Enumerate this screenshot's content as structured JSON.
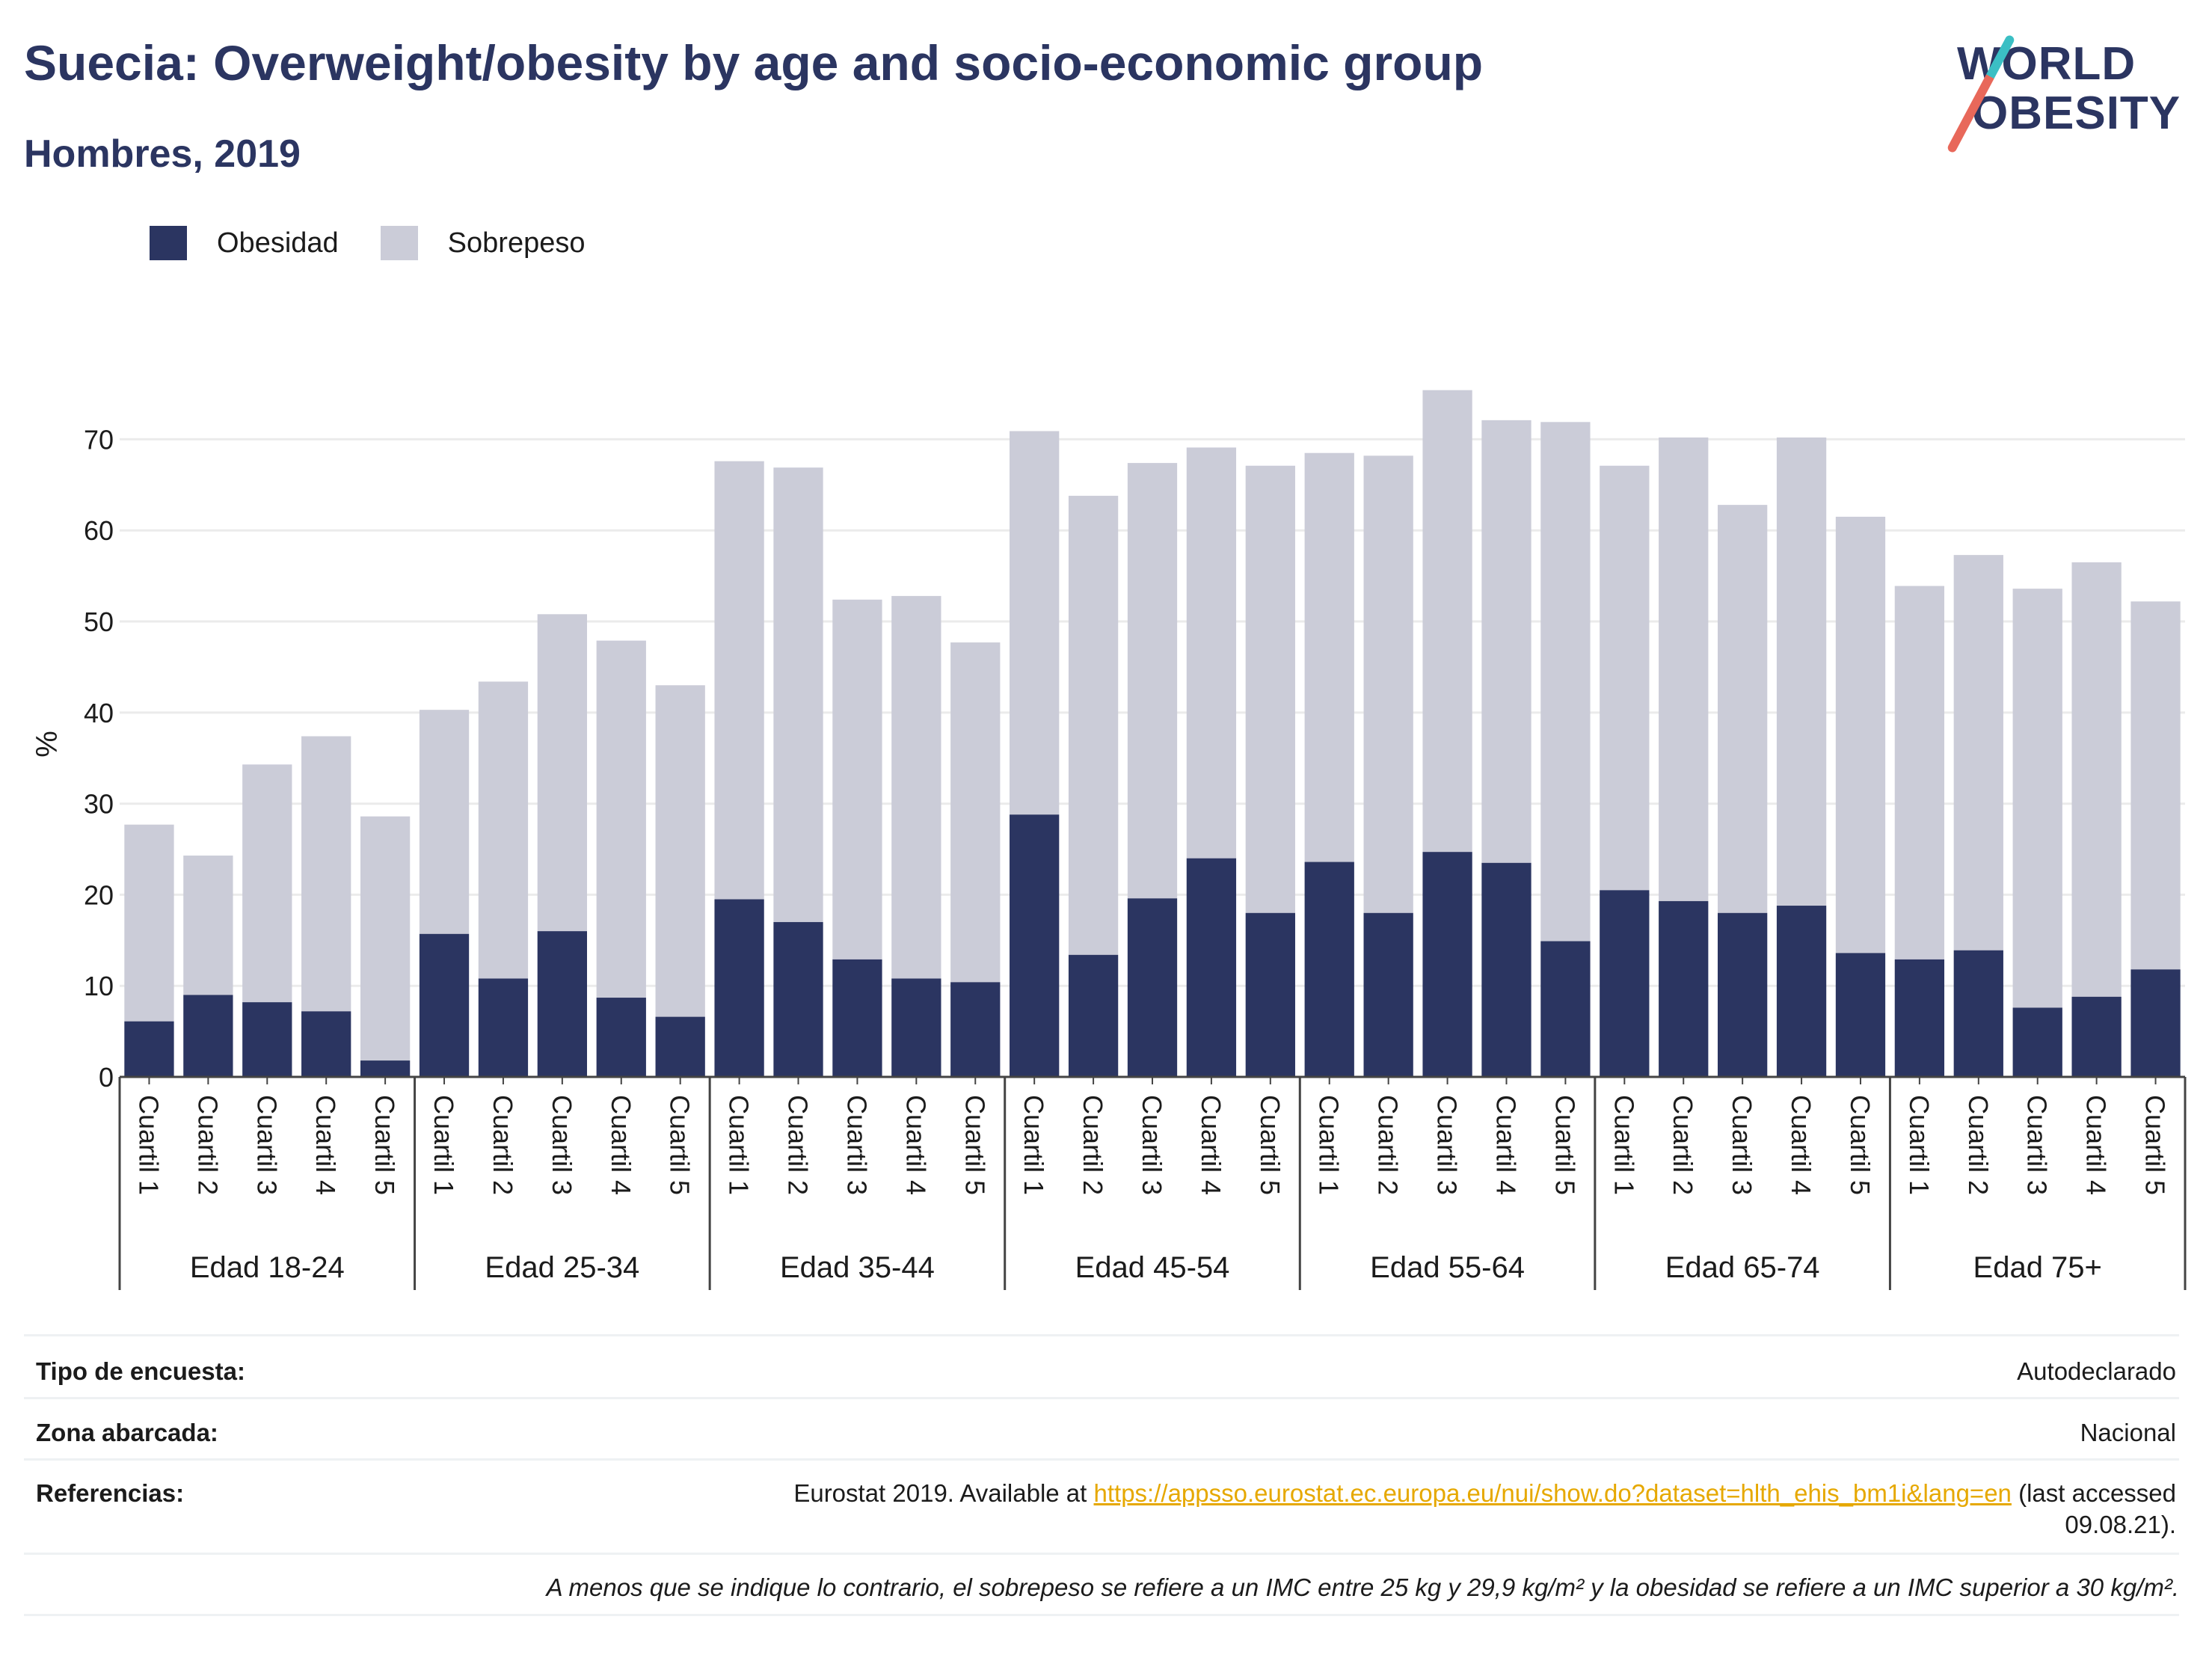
{
  "header": {
    "title": "Suecia: Overweight/obesity by age and socio-economic group",
    "subtitle": "Hombres, 2019"
  },
  "logo": {
    "line1": "WORLD",
    "line2": "OBESITY",
    "accent_top": "#3bbfc4",
    "accent_bottom": "#e8685a"
  },
  "colors": {
    "obesity": "#2b3561",
    "overweight": "#cbccd8",
    "axis": "#444444",
    "grid": "#ebebeb",
    "text": "#1b1b1b",
    "title": "#2b3561",
    "link": "#e6a800"
  },
  "legend": [
    {
      "label": "Obesidad",
      "color": "#2b3561"
    },
    {
      "label": "Sobrepeso",
      "color": "#cbccd8"
    }
  ],
  "chart_data": {
    "type": "bar",
    "stacked": true,
    "ylabel": "%",
    "ylim": [
      0,
      78
    ],
    "yticks": [
      0,
      10,
      20,
      30,
      40,
      50,
      60,
      70
    ],
    "grid": true,
    "legend_position": "top-left",
    "groups": [
      "Edad 18-24",
      "Edad 25-34",
      "Edad 35-44",
      "Edad 45-54",
      "Edad 55-64",
      "Edad 65-74",
      "Edad 75+"
    ],
    "subcategories": [
      "Cuartil 1",
      "Cuartil 2",
      "Cuartil 3",
      "Cuartil 4",
      "Cuartil 5"
    ],
    "series": [
      {
        "name": "Obesidad",
        "values": [
          [
            6.1,
            9.0,
            8.2,
            7.2,
            1.8
          ],
          [
            15.7,
            10.8,
            16.0,
            8.7,
            6.6
          ],
          [
            19.5,
            17.0,
            12.9,
            10.8,
            10.4
          ],
          [
            28.8,
            13.4,
            19.6,
            24.0,
            18.0
          ],
          [
            23.6,
            18.0,
            24.7,
            23.5,
            14.9
          ],
          [
            20.5,
            19.3,
            18.0,
            18.8,
            13.6
          ],
          [
            12.9,
            13.9,
            7.6,
            8.8,
            11.8
          ]
        ]
      },
      {
        "name": "Sobrepeso",
        "values": [
          [
            21.6,
            15.3,
            26.1,
            30.2,
            26.8
          ],
          [
            24.6,
            32.6,
            34.8,
            39.2,
            36.4
          ],
          [
            48.1,
            49.9,
            39.5,
            42.0,
            37.3
          ],
          [
            42.1,
            50.4,
            47.8,
            45.1,
            49.1
          ],
          [
            44.9,
            50.2,
            50.7,
            48.6,
            57.0
          ],
          [
            46.6,
            50.9,
            44.8,
            51.4,
            47.9
          ],
          [
            41.0,
            43.4,
            46.0,
            47.7,
            40.4
          ]
        ]
      }
    ]
  },
  "info": {
    "survey_type_label": "Tipo de encuesta:",
    "survey_type_value": "Autodeclarado",
    "area_label": "Zona abarcada:",
    "area_value": "Nacional",
    "references_label": "Referencias:",
    "references_prefix": "Eurostat 2019. Available at ",
    "references_link": "https://appsso.eurostat.ec.europa.eu/nui/show.do?dataset=hlth_ehis_bm1i&lang=en",
    "references_suffix": " (last accessed",
    "references_date": "09.08.21).",
    "footnote": "A menos que se indique lo contrario, el sobrepeso se refiere a un IMC entre 25 kg y 29,9 kg/m² y la obesidad se refiere a un IMC superior a 30 kg/m²."
  }
}
